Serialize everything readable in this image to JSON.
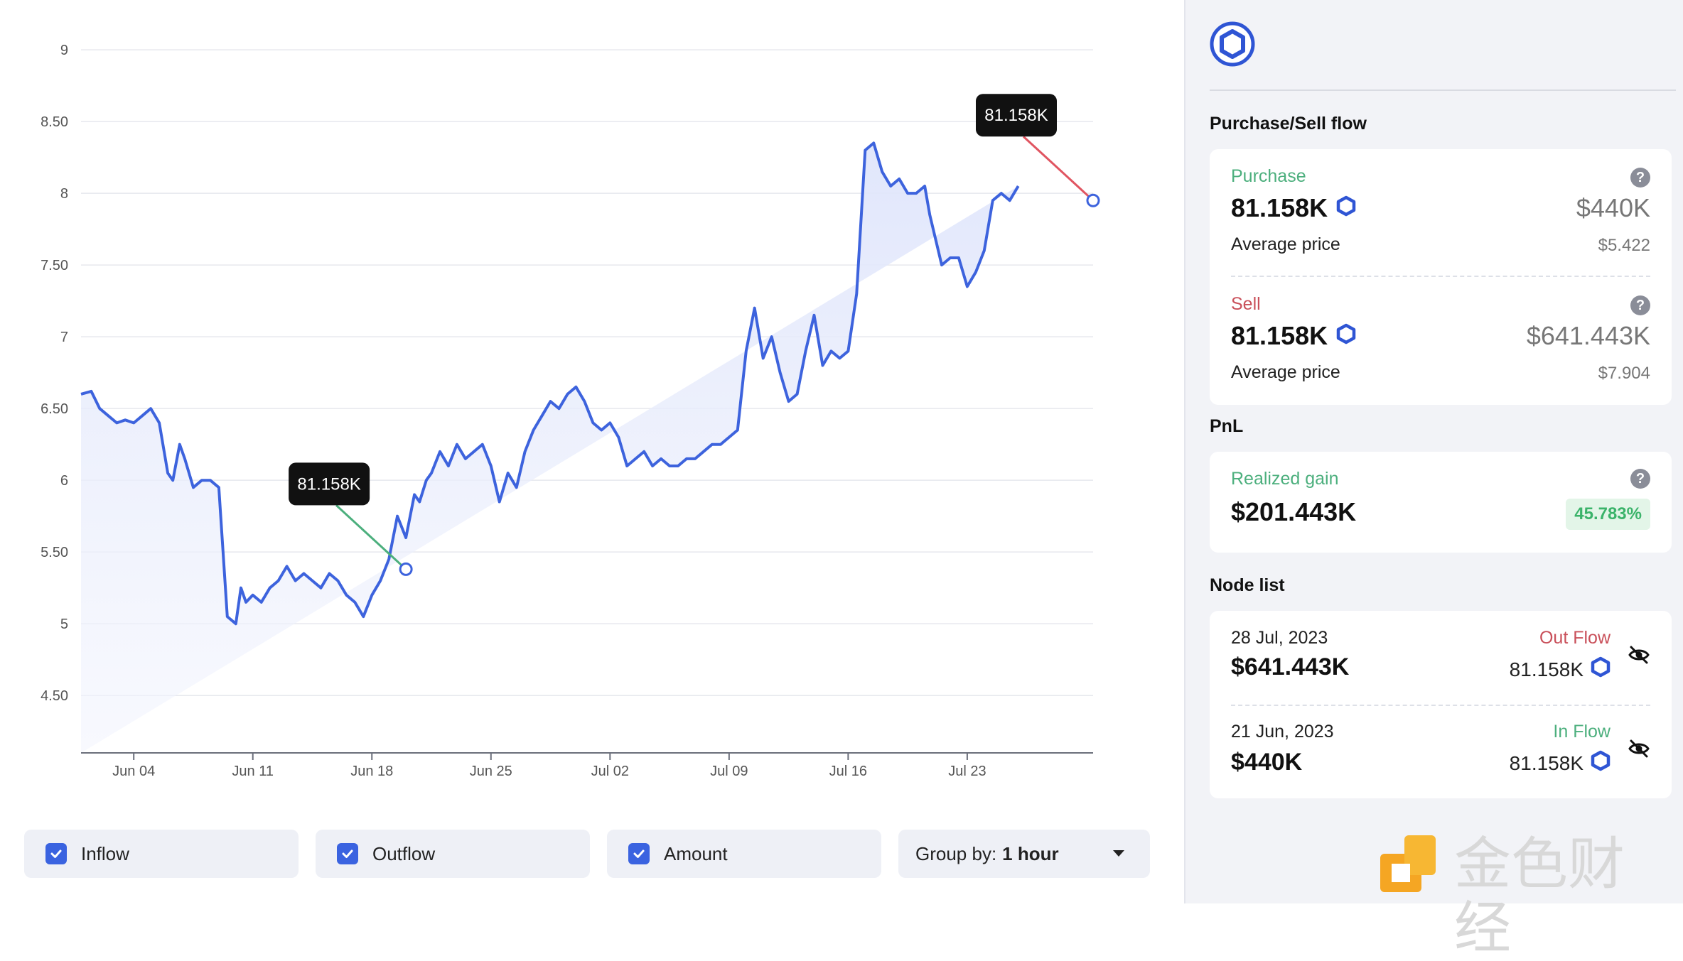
{
  "chart_data": {
    "type": "line",
    "y_ticks": [
      "9",
      "8.50",
      "8",
      "7.50",
      "7",
      "6.50",
      "6",
      "5.50",
      "5",
      "4.50"
    ],
    "y_tick_values": [
      9,
      8.5,
      8,
      7.5,
      7,
      6.5,
      6,
      5.5,
      5,
      4.5
    ],
    "ylim": [
      4.1,
      9.05
    ],
    "x_ticks": [
      "Jun 04",
      "Jun 11",
      "Jun 18",
      "Jun 25",
      "Jul 02",
      "Jul 09",
      "Jul 16",
      "Jul 23"
    ],
    "x_tick_day_index": [
      4,
      11,
      18,
      25,
      32,
      39,
      46,
      53
    ],
    "x_start_date": "Jun 01, 2023",
    "xlim_day_index": [
      0.9,
      60.4
    ],
    "series": [
      {
        "name": "",
        "x_day_index": [
          0.9,
          1.5,
          2.0,
          2.5,
          3.0,
          3.5,
          4.0,
          4.5,
          5.0,
          5.5,
          6.0,
          6.3,
          6.7,
          7.0,
          7.5,
          8.0,
          8.5,
          9.0,
          9.5,
          10.0,
          10.3,
          10.6,
          11.0,
          11.5,
          12.0,
          12.5,
          13.0,
          13.5,
          14.0,
          14.5,
          15.0,
          15.5,
          16.0,
          16.5,
          17.0,
          17.5,
          18.0,
          18.5,
          19.0,
          19.5,
          20.0,
          20.5,
          20.8,
          21.2,
          21.5,
          22.0,
          22.5,
          23.0,
          23.5,
          24.0,
          24.5,
          25.0,
          25.5,
          26.0,
          26.5,
          27.0,
          27.5,
          28.0,
          28.5,
          29.0,
          29.5,
          30.0,
          30.5,
          31.0,
          31.5,
          32.0,
          32.5,
          33.0,
          33.5,
          34.0,
          34.5,
          35.0,
          35.5,
          36.0,
          36.5,
          37.0,
          37.5,
          38.0,
          38.5,
          39.0,
          39.5,
          40.0,
          40.5,
          41.0,
          41.5,
          42.0,
          42.5,
          43.0,
          43.5,
          44.0,
          44.5,
          45.0,
          45.5,
          46.0,
          46.5,
          47.0,
          47.5,
          48.0,
          48.5,
          49.0,
          49.5,
          50.0,
          50.5,
          50.8,
          51.0,
          51.5,
          52.0,
          52.5,
          53.0,
          53.5,
          54.0,
          54.5,
          55.0,
          55.5,
          56.0,
          56.5,
          57.0,
          57.5,
          58.0,
          58.5,
          59.0,
          59.5,
          60.0,
          60.4
        ],
        "y": [
          6.6,
          6.62,
          6.5,
          6.45,
          6.4,
          6.42,
          6.4,
          6.45,
          6.5,
          6.4,
          6.05,
          6.0,
          6.25,
          6.15,
          5.95,
          6.0,
          6.0,
          5.95,
          5.05,
          5.0,
          5.25,
          5.15,
          5.2,
          5.15,
          5.25,
          5.3,
          5.4,
          5.3,
          5.35,
          5.3,
          5.25,
          5.35,
          5.3,
          5.2,
          5.15,
          5.05,
          5.2,
          5.3,
          5.45,
          5.75,
          5.6,
          5.9,
          5.85,
          6.0,
          6.05,
          6.2,
          6.1,
          6.25,
          6.15,
          6.2,
          6.25,
          6.1,
          5.85,
          6.05,
          5.95,
          6.2,
          6.35,
          6.45,
          6.55,
          6.5,
          6.6,
          6.65,
          6.55,
          6.4,
          6.35,
          6.4,
          6.3,
          6.1,
          6.15,
          6.2,
          6.1,
          6.15,
          6.1,
          6.1,
          6.15,
          6.15,
          6.2,
          6.25,
          6.25,
          6.3,
          6.35,
          6.9,
          7.2,
          6.85,
          7.0,
          6.75,
          6.55,
          6.6,
          6.9,
          7.15,
          6.8,
          6.9,
          6.85,
          6.9,
          7.3,
          8.3,
          8.35,
          8.15,
          8.05,
          8.1,
          8.0,
          8.0,
          8.05,
          7.85,
          7.75,
          7.5,
          7.55,
          7.55,
          7.35,
          7.45,
          7.6,
          7.95,
          8.0,
          7.95,
          8.05
        ],
        "color": "#3d63dd"
      }
    ],
    "markers": [
      {
        "label": "81.158K",
        "x_day_index": 20.0,
        "y": 5.38,
        "line_color": "#4caf7d",
        "position": "upper-left"
      },
      {
        "label": "81.158K",
        "x_day_index": 60.4,
        "y": 7.95,
        "line_color": "#e05561",
        "position": "upper-left"
      }
    ],
    "grid": true,
    "area_fill": true,
    "legend": "none"
  },
  "controls": {
    "inflow": "Inflow",
    "outflow": "Outflow",
    "amount": "Amount",
    "group_by_label": "Group by:",
    "group_by_value": "1 hour"
  },
  "panel": {
    "flow_title": "Purchase/Sell flow",
    "purchase": {
      "label": "Purchase",
      "amount": "81.158K",
      "usd": "$440K",
      "avg_label": "Average price",
      "avg_value": "$5.422",
      "label_color": "#4caf7d"
    },
    "sell": {
      "label": "Sell",
      "amount": "81.158K",
      "usd": "$641.443K",
      "avg_label": "Average price",
      "avg_value": "$7.904",
      "label_color": "#c9505a"
    },
    "pnl_title": "PnL",
    "pnl": {
      "label": "Realized gain",
      "value": "$201.443K",
      "percent": "45.783%"
    },
    "node_title": "Node list",
    "nodes": [
      {
        "date": "28 Jul, 2023",
        "usd": "$641.443K",
        "flow": "Out Flow",
        "flow_color": "#c9505a",
        "amount": "81.158K"
      },
      {
        "date": "21 Jun, 2023",
        "usd": "$440K",
        "flow": "In Flow",
        "flow_color": "#4caf7d",
        "amount": "81.158K"
      }
    ],
    "help_glyph": "?"
  },
  "watermark": {
    "text": "金色财经"
  },
  "icons": {
    "logo": "chainlink-hexagon-icon",
    "token": "chainlink-token-icon",
    "help": "question-icon",
    "eye": "eye-off-icon",
    "check": "check-icon",
    "caret": "caret-down-icon"
  },
  "colors": {
    "line": "#3d63dd",
    "accent": "#2f55d4",
    "gain": "#3bb36a",
    "loss": "#c9505a"
  }
}
